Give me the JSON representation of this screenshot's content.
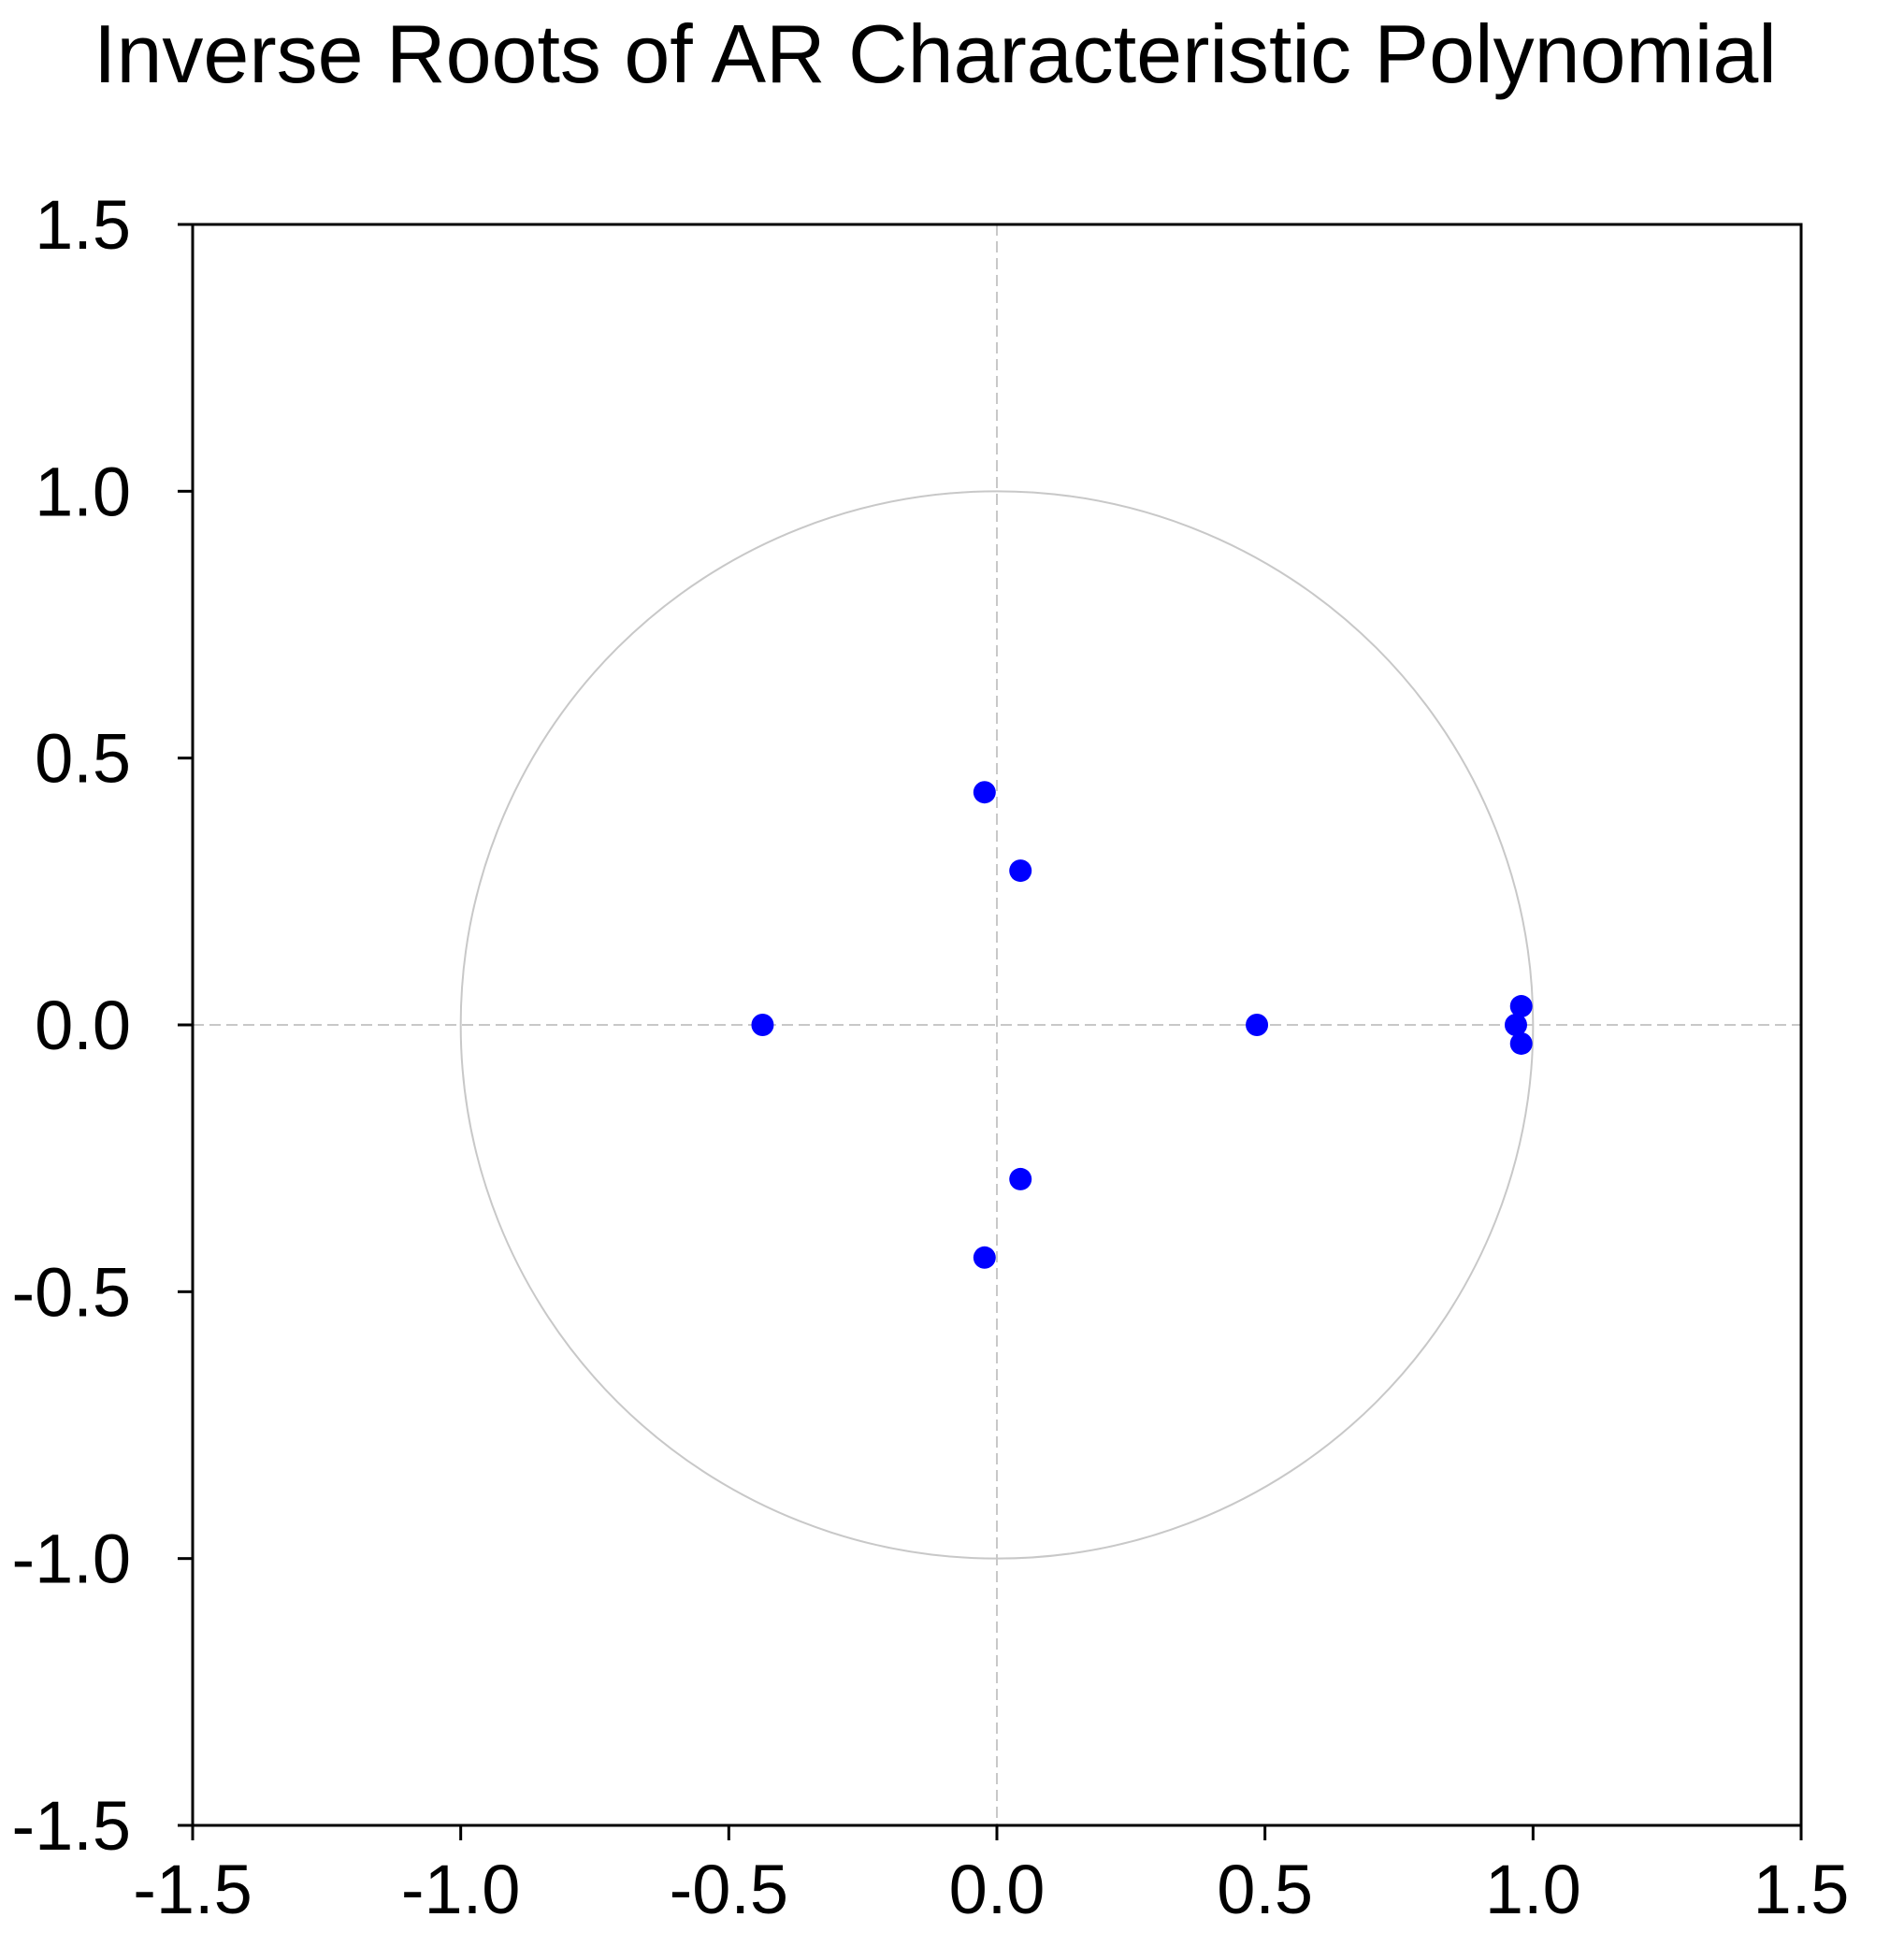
{
  "chart_data": {
    "type": "scatter",
    "title": "Inverse Roots of AR Characteristic Polynomial",
    "series": [
      {
        "color": "#0000ff",
        "x": [
          -0.437,
          0.485,
          -0.023,
          -0.023,
          0.044,
          0.044,
          0.978,
          0.968,
          0.978
        ],
        "y": [
          0,
          0,
          0.436,
          -0.436,
          0.289,
          -0.289,
          0.035,
          0,
          -0.035
        ]
      }
    ],
    "xlim": [
      -1.5,
      1.5
    ],
    "ylim": [
      -1.5,
      1.5
    ],
    "xticks": [
      -1.5,
      {
        "value": -1.0,
        "label": "-1.0"
      },
      -0.5,
      {
        "value": 0,
        "label": "0.0"
      },
      0.5,
      {
        "value": 1.0,
        "label": "1.0"
      },
      1.5
    ],
    "yticks": [
      -1.5,
      {
        "value": -1.0,
        "label": "-1.0"
      },
      -0.5,
      {
        "value": 0,
        "label": "0.0"
      },
      0.5,
      {
        "value": 1.0,
        "label": "1.0"
      },
      1.5
    ],
    "unit_circle": true,
    "zero_lines": true
  }
}
